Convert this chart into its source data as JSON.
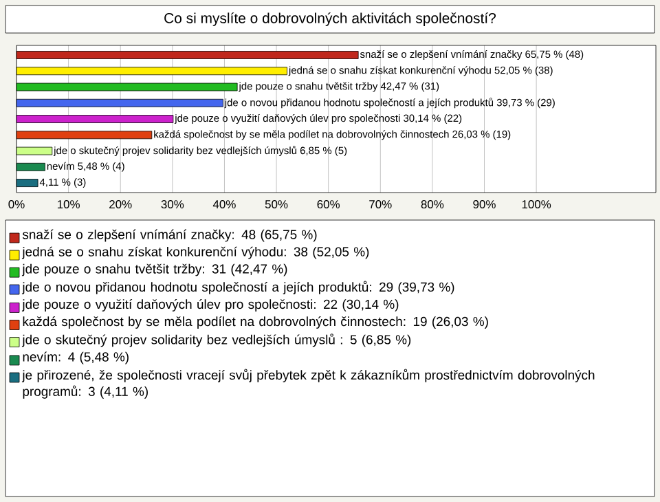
{
  "chart_data": {
    "type": "bar",
    "orientation": "horizontal",
    "title": "Co si myslíte o dobrovolných aktivitách společností?",
    "categories": [
      null,
      null,
      null,
      null,
      null,
      null,
      null,
      null,
      null
    ],
    "values": [
      65.75,
      52.05,
      42.47,
      39.73,
      30.14,
      26.03,
      6.85,
      5.48,
      4.11
    ],
    "colors": [
      "#c0281c",
      "#ffee00",
      "#22bb22",
      "#4466ee",
      "#cc22cc",
      "#e04010",
      "#ccff88",
      "#1a8a50",
      "#1a6e80"
    ],
    "value_labels": [
      "snaží se o zlepšení vnímání značky 65,75 % (48)",
      "jedná se o snahu získat konkurenční výhodu 52,05 % (38)",
      "jde pouze o snahu tvětšit tržby 42,47 % (31)",
      "jde o novou přidanou hodnotu společností a jejích produktů 39,73 % (29)",
      "jde pouze o využití daňových úlev pro společnosti 30,14 % (22)",
      "každá společnost by se měla podílet na dobrovolných činnostech 26,03 % (19)",
      "jde o skutečný projev solidarity bez vedlejších úmyslů  6,85 % (5)",
      "nevím 5,48 % (4)",
      "4,11 % (3)"
    ],
    "annotations": [
      "snaží se o zlepšení vnímání značky: 48 (65,75 %)",
      "jedná se o snahu získat konkurenční výhodu: 38 (52,05 %)",
      "jde pouze o snahu tvětšit tržby: 31 (42,47 %)",
      "jde o novou přidanou hodnotu společností a jejích produktů: 29 (39,73 %)",
      "jde pouze o využití daňových úlev pro společnosti: 22 (30,14 %)",
      "každá společnost by se měla podílet na dobrovolných činnostech: 19 (26,03 %)",
      "jde o skutečný projev solidarity bez vedlejších úmyslů : 5 (6,85 %)",
      "nevím: 4 (5,48 %)",
      "je přirozené, že společnosti vracejí svůj přebytek zpět k zákazníkům prostřednictvím dobrovolných programů: 3 (4,11 %)"
    ],
    "xlim": [
      0,
      123
    ],
    "xticks": [
      {
        "value": 0,
        "label": "0%"
      },
      {
        "value": 10,
        "label": "10%"
      },
      {
        "value": 20,
        "label": "20%"
      },
      {
        "value": 30,
        "label": "30%"
      },
      {
        "value": 40,
        "label": "40%"
      },
      {
        "value": 50,
        "label": "50%"
      },
      {
        "value": 60,
        "label": "60%"
      },
      {
        "value": 70,
        "label": "70%"
      },
      {
        "value": 80,
        "label": "80%"
      },
      {
        "value": 90,
        "label": "90%"
      },
      {
        "value": 100,
        "label": "100%"
      }
    ],
    "grid": "x",
    "tick_labels": "x"
  }
}
